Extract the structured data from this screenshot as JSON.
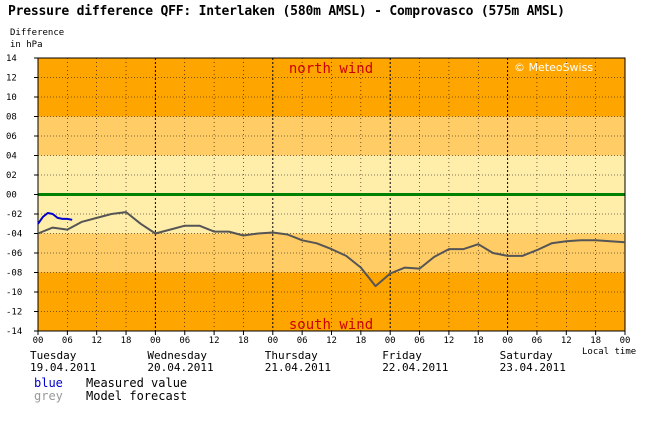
{
  "title": "Pressure difference QFF: Interlaken (580m AMSL) - Comprovasco (575m AMSL)",
  "ylabel_line1": "Difference",
  "ylabel_line2": "in hPa",
  "watermark": "© MeteoSwiss",
  "north_label": "north wind",
  "south_label": "south wind",
  "local_time_label": "Local time",
  "legend": [
    {
      "key": "blue",
      "text": "Measured value",
      "color": "#0000cc"
    },
    {
      "key": "grey",
      "text": "Model forecast",
      "color": "#999999"
    }
  ],
  "colors": {
    "band_dark": "#ffa500",
    "band_mid": "#ffcc66",
    "band_light": "#ffeeaa",
    "zero_line": "#008000",
    "label_red": "#cc0000",
    "measured": "#0000cc",
    "forecast": "#555555"
  },
  "chart_data": {
    "type": "line",
    "title": "Pressure difference QFF: Interlaken (580m AMSL) - Comprovasco (575m AMSL)",
    "ylabel": "Difference in hPa",
    "xlabel": "Local time",
    "ylim": [
      -14,
      14
    ],
    "yticks": [
      "14",
      "12",
      "10",
      "08",
      "06",
      "04",
      "02",
      "00",
      "-02",
      "-04",
      "-06",
      "-08",
      "-10",
      "-12",
      "-14"
    ],
    "xlim_hours": [
      0,
      120
    ],
    "xtick_labels": [
      "00",
      "06",
      "12",
      "18",
      "00",
      "06",
      "12",
      "18",
      "00",
      "06",
      "12",
      "18",
      "00",
      "06",
      "12",
      "18",
      "00",
      "06",
      "12",
      "18",
      "00"
    ],
    "days": [
      {
        "name": "Tuesday",
        "date": "19.04.2011"
      },
      {
        "name": "Wednesday",
        "date": "20.04.2011"
      },
      {
        "name": "Thursday",
        "date": "21.04.2011"
      },
      {
        "name": "Friday",
        "date": "22.04.2011"
      },
      {
        "name": "Saturday",
        "date": "23.04.2011"
      }
    ],
    "series": [
      {
        "name": "Measured value",
        "color": "#0000cc",
        "x": [
          0,
          1,
          2,
          3,
          4,
          5,
          6,
          7
        ],
        "y": [
          -3.0,
          -2.3,
          -1.9,
          -2.0,
          -2.4,
          -2.5,
          -2.5,
          -2.6
        ]
      },
      {
        "name": "Model forecast",
        "color": "#555555",
        "x": [
          0,
          3,
          6,
          9,
          12,
          15,
          18,
          21,
          24,
          27,
          30,
          33,
          36,
          39,
          42,
          45,
          48,
          51,
          54,
          57,
          60,
          63,
          66,
          69,
          72,
          75,
          78,
          81,
          84,
          87,
          90,
          93,
          96,
          99,
          102,
          105,
          108,
          111,
          114,
          117,
          120
        ],
        "y": [
          -4.0,
          -3.4,
          -3.6,
          -2.8,
          -2.4,
          -2.0,
          -1.8,
          -3.0,
          -4.0,
          -3.6,
          -3.2,
          -3.2,
          -3.8,
          -3.8,
          -4.2,
          -4.0,
          -3.9,
          -4.1,
          -4.7,
          -5.0,
          -5.6,
          -6.3,
          -7.5,
          -9.4,
          -8.1,
          -7.5,
          -7.6,
          -6.4,
          -5.6,
          -5.6,
          -5.1,
          -6.0,
          -6.3,
          -6.3,
          -5.7,
          -5.0,
          -4.8,
          -4.7,
          -4.7,
          -4.8,
          -4.9
        ]
      }
    ],
    "grid": true
  }
}
